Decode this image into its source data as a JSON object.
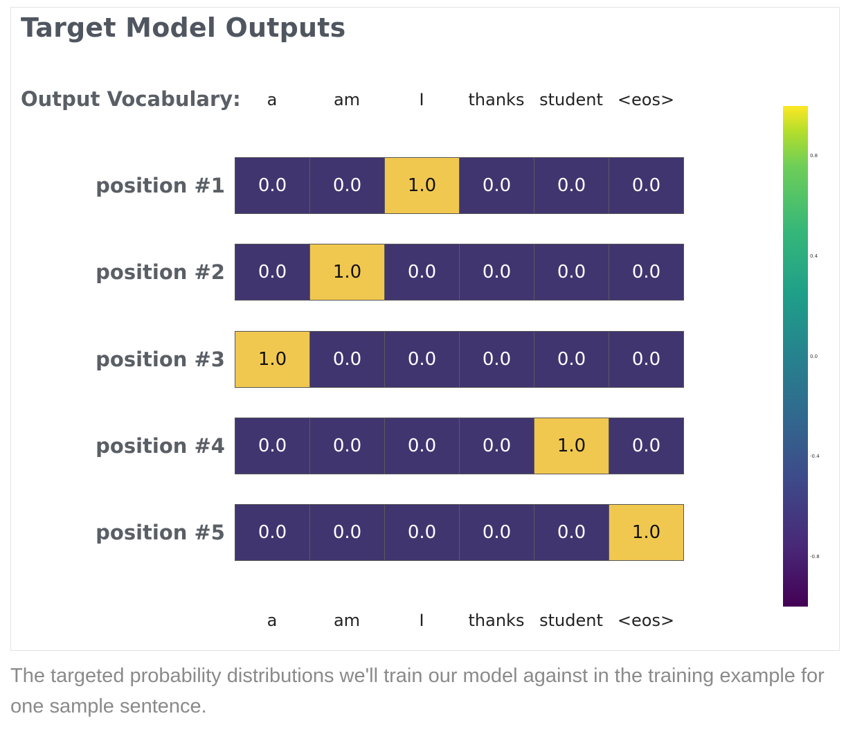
{
  "title": "Target Model Outputs",
  "vocab_label": "Output Vocabulary:",
  "caption": "The targeted probability distributions we'll train our model against in the training example for one sample sentence.",
  "colors": {
    "low": "#413570",
    "high": "#F1C84F",
    "text_on_low": "#ffffff",
    "text_on_high": "#111111"
  },
  "chart_data": {
    "type": "heatmap",
    "title": "Target Model Outputs",
    "columns": [
      "a",
      "am",
      "I",
      "thanks",
      "student",
      "<eos>"
    ],
    "rows": [
      "position #1",
      "position #2",
      "position #3",
      "position #4",
      "position #5"
    ],
    "values": [
      [
        0.0,
        0.0,
        1.0,
        0.0,
        0.0,
        0.0
      ],
      [
        0.0,
        1.0,
        0.0,
        0.0,
        0.0,
        0.0
      ],
      [
        1.0,
        0.0,
        0.0,
        0.0,
        0.0,
        0.0
      ],
      [
        0.0,
        0.0,
        0.0,
        0.0,
        1.0,
        0.0
      ],
      [
        0.0,
        0.0,
        0.0,
        0.0,
        0.0,
        1.0
      ]
    ],
    "value_labels": [
      [
        "0.0",
        "0.0",
        "1.0",
        "0.0",
        "0.0",
        "0.0"
      ],
      [
        "0.0",
        "1.0",
        "0.0",
        "0.0",
        "0.0",
        "0.0"
      ],
      [
        "1.0",
        "0.0",
        "0.0",
        "0.0",
        "0.0",
        "0.0"
      ],
      [
        "0.0",
        "0.0",
        "0.0",
        "0.0",
        "1.0",
        "0.0"
      ],
      [
        "0.0",
        "0.0",
        "0.0",
        "0.0",
        "0.0",
        "1.0"
      ]
    ],
    "colorbar": {
      "colormap": "viridis",
      "range": [
        -1.0,
        1.0
      ],
      "ticks": [
        0.8,
        0.4,
        0.0,
        -0.4,
        -0.8
      ],
      "tick_labels": [
        "0.8",
        "0.4",
        "0.0",
        "-0.4",
        "-0.8"
      ]
    }
  }
}
